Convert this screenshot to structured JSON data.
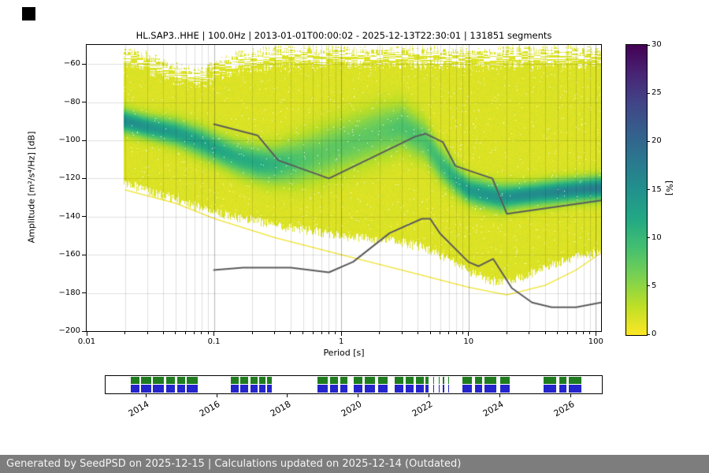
{
  "footer": {
    "text": "Generated by SeedPSD on 2025-12-15 | Calculations updated on 2025-12-14 (Outdated)",
    "bg": "#7d7d7d"
  },
  "chart_data": {
    "type": "heatmap",
    "title": "HL.SAP3..HHE | 100.0Hz | 2013-01-01T00:00:02 - 2025-12-13T22:30:01 | 131851 segments",
    "xlabel": "Period [s]",
    "ylabel": "Amplitude [m²/s⁴/Hz] [dB]",
    "xscale": "log",
    "xlim": [
      0.01,
      110
    ],
    "ylim": [
      -200,
      -50
    ],
    "grid": true,
    "xticks": [
      0.01,
      0.1,
      1,
      10,
      100
    ],
    "xtick_labels": [
      "0.01",
      "0.1",
      "1",
      "10",
      "100"
    ],
    "yticks": [
      -200,
      -180,
      -160,
      -140,
      -120,
      -100,
      -80,
      -60
    ],
    "ytick_labels": [
      "−200",
      "−180",
      "−160",
      "−140",
      "−120",
      "−100",
      "−80",
      "−60"
    ],
    "colorbar": {
      "label": "[%]",
      "min": 0,
      "max": 30,
      "ticks": [
        0,
        5,
        10,
        15,
        20,
        25,
        30
      ],
      "colormap": "viridis_r",
      "stops": [
        [
          0,
          "#440154"
        ],
        [
          0.1,
          "#482475"
        ],
        [
          0.2,
          "#414487"
        ],
        [
          0.3,
          "#355f8d"
        ],
        [
          0.4,
          "#2a788e"
        ],
        [
          0.5,
          "#21918c"
        ],
        [
          0.6,
          "#22a884"
        ],
        [
          0.7,
          "#44bf70"
        ],
        [
          0.8,
          "#7ad151"
        ],
        [
          0.9,
          "#bddf26"
        ],
        [
          1,
          "#fde725"
        ]
      ]
    },
    "ppsd": {
      "periods": [
        0.02,
        0.03,
        0.05,
        0.08,
        0.1,
        0.15,
        0.22,
        0.3,
        0.45,
        0.7,
        1,
        1.5,
        2,
        3,
        4.5,
        6,
        8,
        10,
        13,
        18,
        25,
        35,
        50,
        70,
        110
      ],
      "mode_db": [
        -90,
        -93,
        -96,
        -101,
        -104,
        -109,
        -112,
        -113,
        -111,
        -107,
        -103,
        -99,
        -96,
        -93,
        -100,
        -112,
        -121,
        -126,
        -128,
        -130,
        -129,
        -128,
        -127,
        -126,
        -125
      ],
      "peak_percent": [
        14,
        13,
        12,
        11,
        11,
        10,
        10,
        9,
        7,
        6,
        6,
        6,
        6,
        7,
        7,
        8,
        10,
        12,
        13,
        13,
        14,
        14,
        15,
        15,
        16
      ],
      "spread_db": [
        4,
        4,
        4.5,
        5,
        5,
        5.5,
        6,
        6.5,
        8,
        9,
        9,
        9,
        9,
        8,
        7,
        6,
        5,
        4.5,
        4.5,
        4.5,
        4,
        4,
        4,
        4,
        4
      ],
      "upper_db": [
        -53,
        -56,
        -62,
        -64,
        -60,
        -56,
        -54,
        -53,
        -53,
        -53,
        -53,
        -53,
        -53,
        -53,
        -53,
        -53,
        -53,
        -53,
        -53,
        -53,
        -53,
        -53,
        -53,
        -53,
        -53
      ],
      "lower_db": [
        -122,
        -126,
        -131,
        -135,
        -137,
        -140,
        -142,
        -144,
        -146,
        -148,
        -150,
        -151,
        -152,
        -153,
        -156,
        -160,
        -164,
        -168,
        -172,
        -174,
        -172,
        -168,
        -164,
        -161,
        -158
      ],
      "min_envelope": {
        "periods": [
          0.02,
          0.05,
          0.1,
          0.3,
          1,
          3,
          10,
          20,
          40,
          70,
          110
        ],
        "values_db": [
          -126,
          -133,
          -141,
          -151,
          -160,
          -168,
          -177,
          -181,
          -176,
          -168,
          -159
        ]
      }
    },
    "lines": [
      {
        "name": "nhnm-line",
        "color": "#5b5b5b",
        "width": 2,
        "points": [
          [
            0.1,
            -91.5
          ],
          [
            0.22,
            -97.4
          ],
          [
            0.32,
            -110.5
          ],
          [
            0.8,
            -120.0
          ],
          [
            3.8,
            -98.1
          ],
          [
            4.6,
            -96.5
          ],
          [
            6.3,
            -101.0
          ],
          [
            7.9,
            -113.5
          ],
          [
            15.4,
            -120.0
          ],
          [
            20.0,
            -138.5
          ],
          [
            110.0,
            -131.5
          ]
        ]
      },
      {
        "name": "nlnm-line",
        "color": "#5b5b5b",
        "width": 2,
        "points": [
          [
            0.1,
            -168.0
          ],
          [
            0.17,
            -166.7
          ],
          [
            0.4,
            -166.7
          ],
          [
            0.8,
            -169.2
          ],
          [
            1.24,
            -163.7
          ],
          [
            2.4,
            -148.6
          ],
          [
            4.3,
            -141.1
          ],
          [
            5.0,
            -141.1
          ],
          [
            6.0,
            -149.0
          ],
          [
            10.0,
            -163.8
          ],
          [
            12.0,
            -166.0
          ],
          [
            15.6,
            -162.1
          ],
          [
            21.9,
            -177.5
          ],
          [
            31.6,
            -185.0
          ],
          [
            45.0,
            -187.5
          ],
          [
            70.0,
            -187.5
          ],
          [
            110.0,
            -185.0
          ]
        ]
      }
    ]
  },
  "timeline": {
    "row_colors": {
      "top": "#1f7d1f",
      "bottom": "#2424cc"
    },
    "segments": [
      [
        0.05,
        0.068
      ],
      [
        0.072,
        0.092
      ],
      [
        0.096,
        0.118
      ],
      [
        0.122,
        0.14
      ],
      [
        0.144,
        0.16
      ],
      [
        0.163,
        0.186
      ],
      [
        0.253,
        0.268
      ],
      [
        0.272,
        0.288
      ],
      [
        0.292,
        0.306
      ],
      [
        0.31,
        0.322
      ],
      [
        0.326,
        0.335
      ],
      [
        0.427,
        0.448
      ],
      [
        0.452,
        0.468
      ],
      [
        0.473,
        0.488
      ],
      [
        0.5,
        0.518
      ],
      [
        0.523,
        0.543
      ],
      [
        0.549,
        0.568
      ],
      [
        0.582,
        0.6
      ],
      [
        0.605,
        0.62
      ],
      [
        0.625,
        0.641
      ],
      [
        0.645,
        0.651
      ],
      [
        0.66,
        0.662
      ],
      [
        0.671,
        0.673
      ],
      [
        0.68,
        0.682
      ],
      [
        0.69,
        0.692
      ],
      [
        0.719,
        0.738
      ],
      [
        0.744,
        0.758
      ],
      [
        0.764,
        0.788
      ],
      [
        0.795,
        0.815
      ],
      [
        0.883,
        0.908
      ],
      [
        0.914,
        0.928
      ],
      [
        0.934,
        0.958
      ]
    ],
    "year_labels": [
      "2014",
      "2016",
      "2018",
      "2020",
      "2022",
      "2024",
      "2026"
    ],
    "year_fracs": [
      0.0825,
      0.2248,
      0.367,
      0.5093,
      0.6515,
      0.7938,
      0.936
    ]
  }
}
